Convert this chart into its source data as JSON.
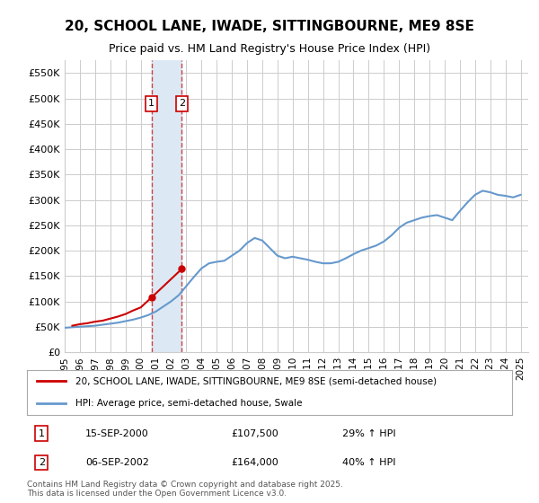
{
  "title": "20, SCHOOL LANE, IWADE, SITTINGBOURNE, ME9 8SE",
  "subtitle": "Price paid vs. HM Land Registry's House Price Index (HPI)",
  "footnote": "Contains HM Land Registry data © Crown copyright and database right 2025.\nThis data is licensed under the Open Government Licence v3.0.",
  "legend_line1": "20, SCHOOL LANE, IWADE, SITTINGBOURNE, ME9 8SE (semi-detached house)",
  "legend_line2": "HPI: Average price, semi-detached house, Swale",
  "annotation1": {
    "label": "1",
    "date": "15-SEP-2000",
    "price": "£107,500",
    "hpi": "29% ↑ HPI",
    "x_year": 2000.71
  },
  "annotation2": {
    "label": "2",
    "date": "06-SEP-2002",
    "price": "£164,000",
    "hpi": "40% ↑ HPI",
    "x_year": 2002.71
  },
  "sale_color": "#cc0000",
  "hpi_color": "#6699cc",
  "highlight_color": "#dce9f5",
  "background_color": "#ffffff",
  "grid_color": "#cccccc",
  "ylim": [
    0,
    575000
  ],
  "yticks": [
    0,
    50000,
    100000,
    150000,
    200000,
    250000,
    300000,
    350000,
    400000,
    450000,
    500000,
    550000
  ],
  "ytick_labels": [
    "£0",
    "£50K",
    "£100K",
    "£150K",
    "£200K",
    "£250K",
    "£300K",
    "£350K",
    "£400K",
    "£450K",
    "£500K",
    "£550K"
  ],
  "sale_years": [
    1995.5,
    1996.0,
    1996.5,
    1997.0,
    1997.5,
    1998.0,
    1998.5,
    1999.0,
    1999.5,
    2000.0,
    2000.71,
    2002.71
  ],
  "sale_prices": [
    52000,
    55000,
    57000,
    60000,
    62000,
    66000,
    70000,
    75000,
    82000,
    88000,
    107500,
    164000
  ],
  "hpi_years": [
    1995.0,
    1995.5,
    1996.0,
    1996.5,
    1997.0,
    1997.5,
    1998.0,
    1998.5,
    1999.0,
    1999.5,
    2000.0,
    2000.5,
    2001.0,
    2001.5,
    2002.0,
    2002.5,
    2003.0,
    2003.5,
    2004.0,
    2004.5,
    2005.0,
    2005.5,
    2006.0,
    2006.5,
    2007.0,
    2007.5,
    2008.0,
    2008.5,
    2009.0,
    2009.5,
    2010.0,
    2010.5,
    2011.0,
    2011.5,
    2012.0,
    2012.5,
    2013.0,
    2013.5,
    2014.0,
    2014.5,
    2015.0,
    2015.5,
    2016.0,
    2016.5,
    2017.0,
    2017.5,
    2018.0,
    2018.5,
    2019.0,
    2019.5,
    2020.0,
    2020.5,
    2021.0,
    2021.5,
    2022.0,
    2022.5,
    2023.0,
    2023.5,
    2024.0,
    2024.5,
    2025.0
  ],
  "hpi_prices": [
    48000,
    49000,
    50000,
    51000,
    52000,
    54000,
    56000,
    58000,
    61000,
    64000,
    68000,
    73000,
    80000,
    90000,
    100000,
    112000,
    130000,
    148000,
    165000,
    175000,
    178000,
    180000,
    190000,
    200000,
    215000,
    225000,
    220000,
    205000,
    190000,
    185000,
    188000,
    185000,
    182000,
    178000,
    175000,
    175000,
    178000,
    185000,
    193000,
    200000,
    205000,
    210000,
    218000,
    230000,
    245000,
    255000,
    260000,
    265000,
    268000,
    270000,
    265000,
    260000,
    278000,
    295000,
    310000,
    318000,
    315000,
    310000,
    308000,
    305000,
    310000
  ],
  "sale_scatter_x": [
    2000.71,
    2002.71
  ],
  "sale_scatter_y": [
    107500,
    164000
  ],
  "xmin": 1995.0,
  "xmax": 2025.5,
  "xtick_years": [
    1995,
    1996,
    1997,
    1998,
    1999,
    2000,
    2001,
    2002,
    2003,
    2004,
    2005,
    2006,
    2007,
    2008,
    2009,
    2010,
    2011,
    2012,
    2013,
    2014,
    2015,
    2016,
    2017,
    2018,
    2019,
    2020,
    2021,
    2022,
    2023,
    2024,
    2025
  ],
  "shaded_x1": 2000.71,
  "shaded_x2": 2002.71
}
